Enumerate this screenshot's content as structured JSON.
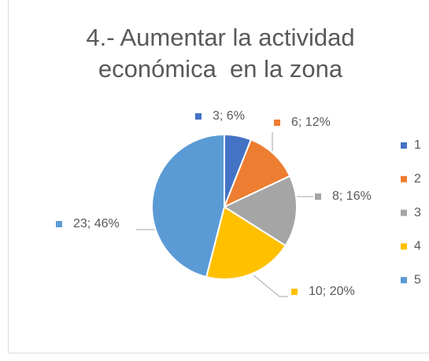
{
  "chart_data": {
    "type": "pie",
    "title": "4.- Aumentar la actividad económica  en la zona",
    "categories": [
      "1",
      "2",
      "3",
      "4",
      "5"
    ],
    "values": [
      3,
      6,
      8,
      10,
      23
    ],
    "value_labels": [
      "3; 6%",
      "6; 12%",
      "8; 16%",
      "10; 20%",
      "23; 46%"
    ],
    "colors": [
      "#4472c4",
      "#ed7d31",
      "#a5a5a5",
      "#ffc000",
      "#5b9bd5"
    ],
    "legend": "right"
  }
}
